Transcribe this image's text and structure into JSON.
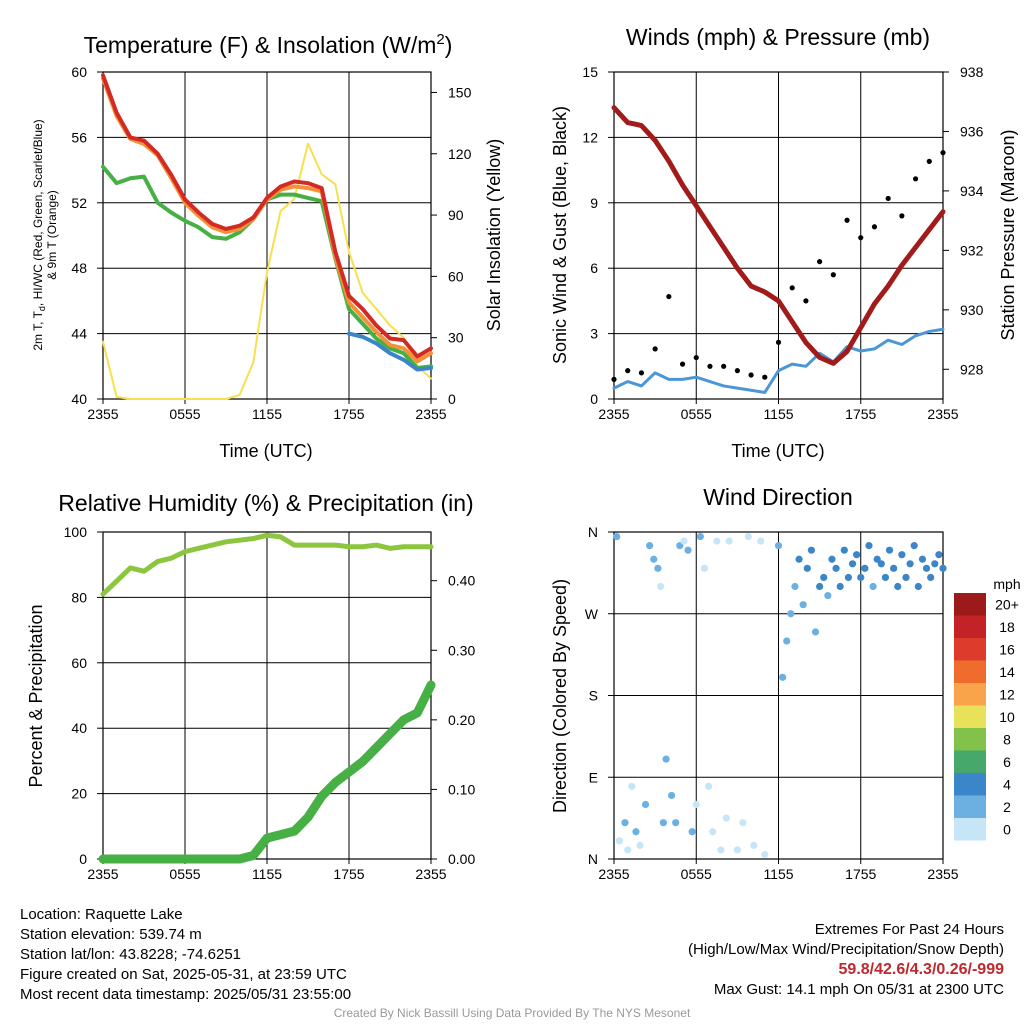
{
  "colors": {
    "temp_red": "#d42a24",
    "td_green": "#46b044",
    "wc_blue": "#3a86c8",
    "t9_orange": "#f3913a",
    "solar_yellow": "#f6e04e",
    "sonic_blue": "#4d96d6",
    "gust_black": "#000000",
    "pressure_maroon": "#a21b1b",
    "rh_green": "#8cc63f",
    "precip_green": "#46b044"
  },
  "x_ticks": [
    "2355",
    "0555",
    "1155",
    "1755",
    "2355"
  ],
  "panels": {
    "temp": {
      "title": "Temperature (F) & Insolation (W/m",
      "title_sup": "2",
      "title_end": ")",
      "ylabel_left_1": "2m T, T",
      "ylabel_sub": "d",
      "ylabel_left_2": ", HI/WC (Red, Green, Scarlet/Blue)",
      "ylabel_left_3": "& 9m T (Orange)",
      "ylabel_right": "Solar Insolation (Yellow)",
      "xlabel": "Time (UTC)"
    },
    "wind": {
      "title": "Winds (mph) & Pressure (mb)",
      "ylabel_left": "Sonic Wind & Gust (Blue, Black)",
      "ylabel_right": "Station Pressure (Maroon)",
      "xlabel": "Time (UTC)"
    },
    "rh": {
      "title": "Relative Humidity (%) & Precipitation (in)",
      "ylabel_left": "Percent & Precipitation"
    },
    "dir": {
      "title": "Wind Direction",
      "ylabel_left": "Direction (Colored By Speed)",
      "legend_title": "mph"
    }
  },
  "chart_data": [
    {
      "type": "line",
      "title": "Temperature (F) & Insolation (W/m2)",
      "xlabel": "Time (UTC)",
      "ylim": [
        40,
        60
      ],
      "y2lim": [
        0,
        160
      ],
      "yticks": [
        40,
        44,
        48,
        52,
        56,
        60
      ],
      "y2ticks": [
        0,
        30,
        60,
        90,
        120,
        150
      ],
      "x": [
        0,
        1,
        2,
        3,
        4,
        5,
        6,
        7,
        8,
        9,
        10,
        11,
        12,
        13,
        14,
        15,
        16,
        17,
        18,
        19,
        20,
        21,
        22,
        23,
        24
      ],
      "series": [
        {
          "name": "2m T",
          "axis": "left",
          "values": [
            59.8,
            57.5,
            56,
            55.8,
            55,
            53.7,
            52.2,
            51.4,
            50.7,
            50.4,
            50.6,
            51.1,
            52.3,
            53,
            53.3,
            53.2,
            52.9,
            49,
            46.3,
            45.5,
            44.5,
            43.7,
            43.6,
            42.6,
            43.1
          ]
        },
        {
          "name": "9m T",
          "axis": "left",
          "values": [
            59.6,
            57.3,
            55.9,
            55.6,
            54.9,
            53.5,
            52,
            51.2,
            50.5,
            50.2,
            50.4,
            51,
            52.2,
            52.8,
            53,
            52.9,
            52.7,
            48.7,
            45.9,
            45,
            44.1,
            43.3,
            43.1,
            42.3,
            42.8
          ]
        },
        {
          "name": "Td",
          "axis": "left",
          "values": [
            54.2,
            53.2,
            53.5,
            53.6,
            52,
            51.4,
            50.9,
            50.5,
            49.9,
            49.8,
            50.2,
            51,
            52.2,
            52.5,
            52.5,
            52.3,
            52.1,
            48.6,
            45.5,
            44.6,
            43.7,
            43.1,
            42.8,
            41.9,
            42
          ]
        },
        {
          "name": "HI/WC",
          "axis": "left",
          "values": [
            null,
            null,
            null,
            null,
            null,
            null,
            null,
            null,
            null,
            null,
            null,
            null,
            null,
            null,
            null,
            null,
            null,
            null,
            44,
            43.8,
            43.4,
            42.8,
            42.4,
            41.8,
            41.9
          ]
        },
        {
          "name": "Solar Insolation",
          "axis": "right",
          "values": [
            28,
            1,
            0,
            0,
            0,
            0,
            0,
            0,
            0,
            0,
            2,
            18,
            62,
            92,
            98,
            125,
            110,
            105,
            72,
            52,
            44,
            36,
            30,
            16,
            10
          ]
        }
      ]
    },
    {
      "type": "line",
      "title": "Winds (mph) & Pressure (mb)",
      "xlabel": "Time (UTC)",
      "ylim": [
        0,
        15
      ],
      "y2lim": [
        927,
        938
      ],
      "yticks": [
        0,
        3,
        6,
        9,
        12,
        15
      ],
      "y2ticks": [
        928,
        930,
        932,
        934,
        936,
        938
      ],
      "x": [
        0,
        1,
        2,
        3,
        4,
        5,
        6,
        7,
        8,
        9,
        10,
        11,
        12,
        13,
        14,
        15,
        16,
        17,
        18,
        19,
        20,
        21,
        22,
        23,
        24
      ],
      "series": [
        {
          "name": "Sonic Wind",
          "axis": "left",
          "values": [
            0.5,
            0.8,
            0.6,
            1.2,
            0.9,
            0.9,
            1,
            0.8,
            0.6,
            0.5,
            0.4,
            0.3,
            1.3,
            1.6,
            1.5,
            2.1,
            1.7,
            2.4,
            2.2,
            2.3,
            2.7,
            2.5,
            2.9,
            3.1,
            3.2
          ]
        },
        {
          "name": "Gust",
          "axis": "left",
          "values": [
            0.9,
            1.3,
            1.2,
            2.3,
            4.7,
            1.6,
            1.9,
            1.5,
            1.5,
            1.3,
            1.1,
            1,
            2.6,
            5.1,
            4.5,
            6.3,
            5.7,
            8.2,
            7.4,
            7.9,
            9.2,
            8.4,
            10.1,
            10.9,
            11.3
          ]
        },
        {
          "name": "Station Pressure",
          "axis": "right",
          "values": [
            936.8,
            936.3,
            936.2,
            935.7,
            935,
            934.2,
            933.5,
            932.8,
            932.1,
            931.4,
            930.8,
            930.6,
            930.3,
            929.6,
            928.9,
            928.4,
            928.2,
            928.6,
            929.4,
            930.2,
            930.8,
            931.5,
            932.1,
            932.7,
            933.3
          ]
        }
      ]
    },
    {
      "type": "line",
      "title": "Relative Humidity (%) & Precipitation (in)",
      "ylim": [
        0,
        100
      ],
      "y2lim": [
        0,
        0.47
      ],
      "yticks": [
        0,
        20,
        40,
        60,
        80,
        100
      ],
      "y2ticks": [
        0.0,
        0.1,
        0.2,
        0.3,
        0.4
      ],
      "x": [
        0,
        1,
        2,
        3,
        4,
        5,
        6,
        7,
        8,
        9,
        10,
        11,
        12,
        13,
        14,
        15,
        16,
        17,
        18,
        19,
        20,
        21,
        22,
        23,
        24
      ],
      "series": [
        {
          "name": "Relative Humidity",
          "axis": "left",
          "values": [
            81,
            85,
            89,
            88,
            91,
            92,
            94,
            95,
            96,
            97,
            97.5,
            98,
            99,
            98.5,
            96,
            96,
            96,
            96,
            95.5,
            95.5,
            96,
            95,
            95.5,
            95.5,
            95.5
          ]
        },
        {
          "name": "Precipitation",
          "axis": "right",
          "values": [
            0,
            0,
            0,
            0,
            0,
            0,
            0,
            0,
            0,
            0,
            0,
            0.005,
            0.03,
            0.035,
            0.04,
            0.06,
            0.09,
            0.11,
            0.125,
            0.14,
            0.16,
            0.18,
            0.2,
            0.21,
            0.25
          ]
        }
      ]
    },
    {
      "type": "scatter",
      "title": "Wind Direction",
      "ylabel": "Direction (Colored By Speed)",
      "yticks": [
        "N",
        "E",
        "S",
        "W",
        "N"
      ],
      "legend": {
        "title": "mph",
        "labels": [
          "20+",
          "18",
          "16",
          "14",
          "12",
          "10",
          "8",
          "6",
          "4",
          "2",
          "0"
        ],
        "colors": [
          "#9c1a1a",
          "#c32226",
          "#dd3b2c",
          "#f06c2c",
          "#f9a44a",
          "#e8e25a",
          "#82c14a",
          "#46a86a",
          "#3a86c8",
          "#6cb0e1",
          "#c6e6f8"
        ]
      },
      "points": [
        [
          0.2,
          355,
          1
        ],
        [
          0.4,
          20,
          0.5
        ],
        [
          0.8,
          40,
          1
        ],
        [
          1,
          10,
          0.7
        ],
        [
          1.3,
          80,
          0.6
        ],
        [
          1.6,
          30,
          1.5
        ],
        [
          1.9,
          15,
          0.8
        ],
        [
          2.3,
          60,
          1
        ],
        [
          2.6,
          345,
          1.2
        ],
        [
          2.9,
          330,
          1.5
        ],
        [
          3.2,
          320,
          1.6
        ],
        [
          3.4,
          300,
          0.8
        ],
        [
          3.6,
          40,
          1
        ],
        [
          3.8,
          110,
          1
        ],
        [
          4.2,
          70,
          1.2
        ],
        [
          4.5,
          40,
          1.1
        ],
        [
          4.8,
          345,
          1.6
        ],
        [
          5.1,
          350,
          0.9
        ],
        [
          5.4,
          340,
          1.2
        ],
        [
          5.7,
          30,
          1
        ],
        [
          6,
          60,
          0.8
        ],
        [
          6.3,
          355,
          1.1
        ],
        [
          6.6,
          320,
          0.9
        ],
        [
          6.9,
          80,
          0.5
        ],
        [
          7.2,
          30,
          0.6
        ],
        [
          7.5,
          350,
          0.7
        ],
        [
          7.8,
          10,
          0.8
        ],
        [
          8.2,
          45,
          0.6
        ],
        [
          8.4,
          350,
          0.5
        ],
        [
          9,
          10,
          0.6
        ],
        [
          9.4,
          40,
          0.5
        ],
        [
          9.8,
          355,
          0.5
        ],
        [
          10.2,
          15,
          0.4
        ],
        [
          10.7,
          350,
          0.4
        ],
        [
          11,
          5,
          0.3
        ],
        [
          12,
          345,
          2.1
        ],
        [
          12.3,
          200,
          1.4
        ],
        [
          12.6,
          240,
          1.8
        ],
        [
          12.9,
          270,
          2.4
        ],
        [
          13.2,
          300,
          2.6
        ],
        [
          13.5,
          330,
          3.1
        ],
        [
          13.8,
          280,
          2.2
        ],
        [
          14.1,
          320,
          3.4
        ],
        [
          14.4,
          340,
          3.6
        ],
        [
          14.7,
          250,
          2.1
        ],
        [
          15,
          300,
          3.2
        ],
        [
          15.3,
          310,
          3.6
        ],
        [
          15.6,
          290,
          2.8
        ],
        [
          15.9,
          330,
          3.8
        ],
        [
          16.2,
          320,
          3.4
        ],
        [
          16.5,
          300,
          3.5
        ],
        [
          16.8,
          340,
          3.8
        ],
        [
          17.1,
          310,
          3
        ],
        [
          17.4,
          325,
          4
        ],
        [
          17.7,
          335,
          4.2
        ],
        [
          18,
          310,
          3.2
        ],
        [
          18.3,
          320,
          3.6
        ],
        [
          18.6,
          345,
          3.8
        ],
        [
          18.9,
          300,
          2.9
        ],
        [
          19.2,
          330,
          3.9
        ],
        [
          19.5,
          325,
          3.6
        ],
        [
          19.8,
          310,
          3.1
        ],
        [
          20.1,
          340,
          3.7
        ],
        [
          20.4,
          320,
          3.5
        ],
        [
          20.7,
          300,
          3.1
        ],
        [
          21,
          335,
          3.9
        ],
        [
          21.3,
          310,
          3.2
        ],
        [
          21.6,
          325,
          3.6
        ],
        [
          21.9,
          345,
          3.8
        ],
        [
          22.2,
          300,
          3
        ],
        [
          22.5,
          330,
          3.4
        ],
        [
          22.8,
          320,
          3.9
        ],
        [
          23.1,
          310,
          3.3
        ],
        [
          23.4,
          325,
          3.5
        ],
        [
          23.7,
          335,
          3.4
        ],
        [
          24,
          320,
          3.3
        ]
      ]
    }
  ],
  "info": {
    "location": "Location: Raquette Lake",
    "elevation": "Station elevation: 539.74 m",
    "latlon": "Station lat/lon: 43.8228; -74.6251",
    "created": "Figure created on Sat, 2025-05-31, at 23:59 UTC",
    "recent": "Most recent data timestamp: 2025/05/31 23:55:00",
    "extremes_title": "Extremes For Past 24 Hours",
    "extremes_sub": "(High/Low/Max Wind/Precipitation/Snow Depth)",
    "extremes_values": "59.8/42.6/4.3/0.26/-999",
    "max_gust": "Max Gust: 14.1 mph On 05/31 at 2300 UTC",
    "credit": "Created By Nick Bassill Using Data Provided By The NYS Mesonet"
  }
}
